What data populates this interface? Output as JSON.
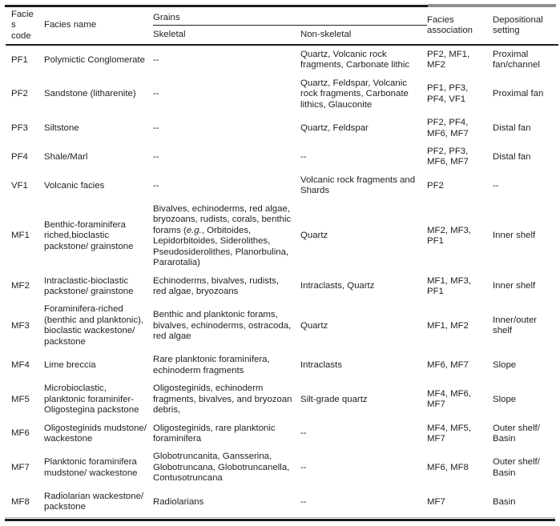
{
  "table": {
    "headers": {
      "facies_code": "Facies code",
      "facies_name": "Facies name",
      "grains": "Grains",
      "skeletal": "Skeletal",
      "non_skeletal": "Non-skeletal",
      "facies_association": "Facies association",
      "depositional_setting": "Depositional setting"
    },
    "rows": [
      {
        "code": "PF1",
        "name": "Polymictic Conglomerate",
        "skeletal": "--",
        "non_skeletal": "Quartz, Volcanic rock fragments, Carbonate lithic",
        "association": "PF2, MF1, MF2",
        "setting": "Proximal fan/channel"
      },
      {
        "code": "PF2",
        "name": "Sandstone (litharenite)",
        "skeletal": "--",
        "non_skeletal": "Quartz, Feldspar, Volcanic rock fragments, Carbonate lithics, Glauconite",
        "association": "PF1, PF3, PF4, VF1",
        "setting": "Proximal fan"
      },
      {
        "code": "PF3",
        "name": "Siltstone",
        "skeletal": "--",
        "non_skeletal": "Quartz, Feldspar",
        "association": "PF2, PF4, MF6, MF7",
        "setting": "Distal fan"
      },
      {
        "code": "PF4",
        "name": "Shale/Marl",
        "skeletal": "--",
        "non_skeletal": "--",
        "association": "PF2, PF3, MF6, MF7",
        "setting": "Distal fan"
      },
      {
        "code": "VF1",
        "name": "Volcanic facies",
        "skeletal": "--",
        "non_skeletal": "Volcanic rock fragments and Shards",
        "association": "PF2",
        "setting": "--"
      },
      {
        "code": "MF1",
        "name": "Benthic-foraminifera riched,bioclastic packstone/ grainstone",
        "skeletal": "Bivalves, echinoderms, red algae, bryozoans, rudists, corals, benthic forams (e.g., Orbitoides, Lepidorbitoides, Siderolithes, Pseudosiderolithes, Planorbulina, Pararotalia)",
        "non_skeletal": "Quartz",
        "association": "MF2, MF3, PF1",
        "setting": "Inner shelf"
      },
      {
        "code": "MF2",
        "name": "Intraclastic-bioclastic packstone/ grainstone",
        "skeletal": "Echinoderms, bivalves, rudists, red algae, bryozoans",
        "non_skeletal": "Intraclasts, Quartz",
        "association": "MF1, MF3, PF1",
        "setting": "Inner shelf"
      },
      {
        "code": "MF3",
        "name": "Foraminifera-riched (benthic and planktonic), bioclastic wackestone/ packstone",
        "skeletal": "Benthic and planktonic forams, bivalves, echinoderms, ostracoda, red algae",
        "non_skeletal": "Quartz",
        "association": "MF1, MF2",
        "setting": "Inner/outer shelf"
      },
      {
        "code": "MF4",
        "name": "Lime breccia",
        "skeletal": "Rare planktonic foraminifera, echinoderm fragments",
        "non_skeletal": "Intraclasts",
        "association": "MF6, MF7",
        "setting": "Slope"
      },
      {
        "code": "MF5",
        "name": "Microbioclastic, planktonic foraminifer-Oligostegina packstone",
        "skeletal": "Oligosteginids, echinoderm fragments, bivalves, and bryozoan debris,",
        "non_skeletal": "Silt-grade quartz",
        "association": "MF4, MF6, MF7",
        "setting": "Slope"
      },
      {
        "code": "MF6",
        "name": "Oligosteginids mudstone/ wackestone",
        "skeletal": "Oligosteginids, rare planktonic foraminifera",
        "non_skeletal": "--",
        "association": "MF4, MF5, MF7",
        "setting": "Outer shelf/ Basin"
      },
      {
        "code": "MF7",
        "name": "Planktonic foraminifera mudstone/ wackestone",
        "skeletal": "Globotruncanita, Gansserina, Globotruncana, Globotruncanella, Contusotruncana",
        "non_skeletal": "--",
        "association": "MF6, MF8",
        "setting": "Outer shelf/ Basin"
      },
      {
        "code": "MF8",
        "name": "Radiolarian wackestone/ packstone",
        "skeletal": "Radiolarians",
        "non_skeletal": "--",
        "association": "MF7",
        "setting": "Basin"
      }
    ],
    "colors": {
      "rule_dark": "#1b1b1b",
      "rule_gray": "#8f8f8f",
      "text": "#1f1f1f"
    }
  }
}
